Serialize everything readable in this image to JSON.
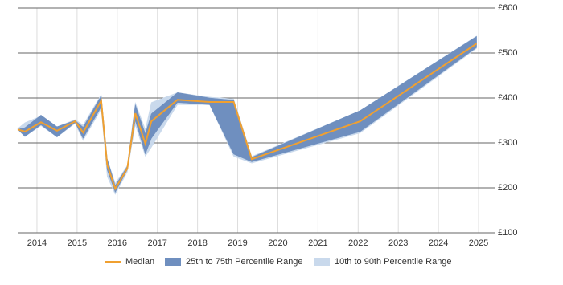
{
  "chart_data": {
    "type": "line",
    "x": [
      2013.52,
      2013.7,
      2014.1,
      2014.5,
      2014.95,
      2015.15,
      2015.6,
      2015.75,
      2015.95,
      2016.25,
      2016.45,
      2016.7,
      2016.85,
      2017.5,
      2018.3,
      2018.9,
      2019.35,
      2022.05,
      2024.95
    ],
    "series": [
      {
        "name": "Median",
        "color": "#f0a030",
        "values": [
          330,
          325,
          346,
          327,
          348,
          323,
          394,
          251,
          198,
          243,
          366,
          298,
          348,
          396,
          391,
          391,
          264,
          348,
          521
        ]
      },
      {
        "name": "25th to 75th Percentile Range",
        "color": "#6f8fbf",
        "lower": [
          330,
          314,
          340,
          313,
          345,
          310,
          380,
          240,
          190,
          240,
          350,
          275,
          310,
          390,
          385,
          275,
          258,
          325,
          512
        ],
        "upper": [
          330,
          334,
          362,
          336,
          350,
          335,
          405,
          265,
          205,
          248,
          385,
          320,
          365,
          412,
          400,
          395,
          268,
          372,
          537
        ]
      },
      {
        "name": "10th to 90th Percentile Range",
        "color": "#c9d9ec",
        "lower": [
          330,
          314,
          338,
          313,
          343,
          305,
          375,
          225,
          185,
          235,
          340,
          270,
          290,
          385,
          385,
          270,
          255,
          322,
          510
        ],
        "upper": [
          332,
          345,
          360,
          336,
          352,
          340,
          408,
          265,
          210,
          250,
          390,
          330,
          390,
          412,
          402,
          398,
          270,
          372,
          538
        ]
      }
    ],
    "xlim": [
      2013.52,
      2025.4
    ],
    "xticks": [
      2014,
      2015,
      2016,
      2017,
      2018,
      2019,
      2020,
      2021,
      2022,
      2023,
      2024,
      2025
    ],
    "ylim": [
      100,
      600
    ],
    "yticks": [
      {
        "value": 100,
        "label": "£100"
      },
      {
        "value": 200,
        "label": "£200"
      },
      {
        "value": 300,
        "label": "£300"
      },
      {
        "value": 400,
        "label": "£400"
      },
      {
        "value": 500,
        "label": "£500"
      },
      {
        "value": 600,
        "label": "£600"
      }
    ],
    "grid": true
  }
}
